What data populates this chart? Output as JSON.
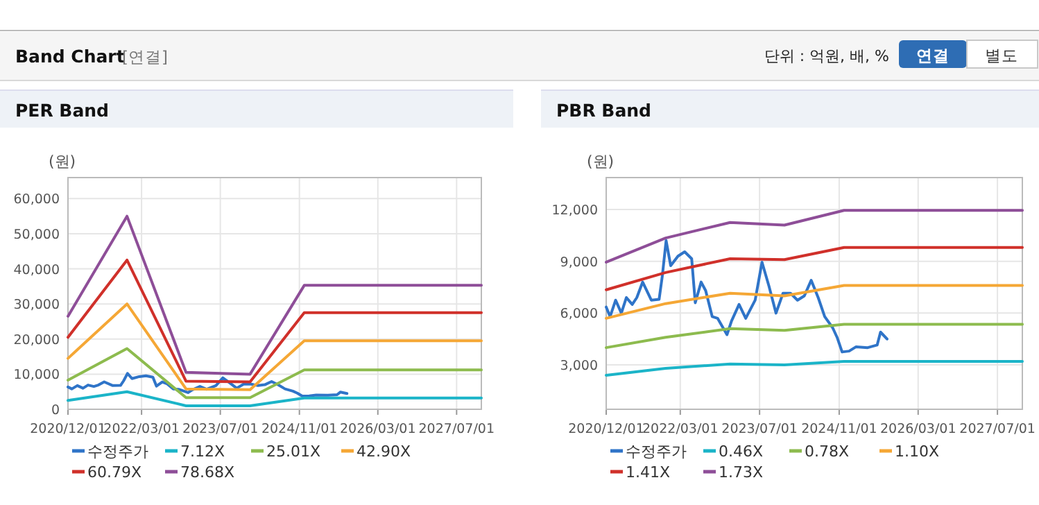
{
  "chart_data": [
    {
      "type": "other",
      "title": "Band Chart",
      "annotations": [
        "[연결]",
        "단위 : 억원, 배, %",
        "연결",
        "별도"
      ]
    },
    {
      "type": "line",
      "title": "PER Band",
      "ylabel": "(원)",
      "xlim": [
        "2020-12-01",
        "2027-12-01"
      ],
      "xticks": [
        {
          "value": "2020-12-01",
          "label": "2020/12/01"
        },
        {
          "value": "2022-03-01",
          "label": "2022/03/01"
        },
        {
          "value": "2023-07-01",
          "label": "2023/07/01"
        },
        {
          "value": "2024-11-01",
          "label": "2024/11/01"
        },
        {
          "value": "2026-03-01",
          "label": "2026/03/01"
        },
        {
          "value": "2027-07-01",
          "label": "2027/07/01"
        }
      ],
      "ylim": [
        0,
        66000
      ],
      "yticks": [
        {
          "value": 0,
          "label": "0"
        },
        {
          "value": 10000,
          "label": "10,000"
        },
        {
          "value": 20000,
          "label": "20,000"
        },
        {
          "value": 30000,
          "label": "30,000"
        },
        {
          "value": 40000,
          "label": "40,000"
        },
        {
          "value": 50000,
          "label": "50,000"
        },
        {
          "value": 60000,
          "label": "60,000"
        }
      ],
      "grid": true,
      "legend": "bottom",
      "marker": "none",
      "line_style": "solid",
      "series": [
        {
          "name": "수정주가",
          "color": "#2f74c8",
          "x": [
            "2020-12-01",
            "2020-12-25",
            "2021-01-28",
            "2021-03-04",
            "2021-04-04",
            "2021-05-10",
            "2021-06-07",
            "2021-07-13",
            "2021-09-04",
            "2021-10-22",
            "2021-11-10",
            "2021-12-04",
            "2022-01-01",
            "2022-02-15",
            "2022-03-28",
            "2022-05-10",
            "2022-06-01",
            "2022-07-07",
            "2022-08-04",
            "2022-09-13",
            "2022-10-16",
            "2022-12-13",
            "2023-01-10",
            "2023-02-25",
            "2023-04-07",
            "2023-06-04",
            "2023-07-16",
            "2023-08-28",
            "2023-10-10",
            "2023-11-22",
            "2024-01-07",
            "2024-02-19",
            "2024-04-01",
            "2024-05-13",
            "2024-06-25",
            "2024-08-04",
            "2024-09-22",
            "2024-10-19",
            "2024-11-19",
            "2025-01-01",
            "2025-02-13",
            "2025-04-25",
            "2025-06-22",
            "2025-07-13",
            "2025-08-22"
          ],
          "values": [
            6350,
            5800,
            6750,
            6000,
            6900,
            6500,
            6900,
            7800,
            6750,
            6800,
            8100,
            10200,
            8750,
            9300,
            9550,
            9150,
            6600,
            7800,
            7300,
            5800,
            5700,
            4750,
            5550,
            6500,
            5700,
            6750,
            8950,
            7550,
            6000,
            7150,
            7150,
            6750,
            7000,
            7900,
            6900,
            5800,
            5150,
            4600,
            3750,
            3800,
            4050,
            4000,
            4150,
            4900,
            4500
          ]
        },
        {
          "name": "7.12X",
          "color": "#1bb4c8",
          "x": [
            "2020-12-01",
            "2021-12-01",
            "2022-12-01",
            "2024-01-01",
            "2024-12-01",
            "2027-12-01"
          ],
          "values": [
            2500,
            5000,
            1000,
            1000,
            3200,
            3200
          ]
        },
        {
          "name": "25.01X",
          "color": "#8dbb4e",
          "x": [
            "2020-12-01",
            "2021-12-01",
            "2022-12-01",
            "2024-01-01",
            "2024-12-01",
            "2027-12-01"
          ],
          "values": [
            8300,
            17300,
            3300,
            3300,
            11200,
            11200
          ]
        },
        {
          "name": "42.90X",
          "color": "#f5a735",
          "x": [
            "2020-12-01",
            "2021-12-01",
            "2022-12-01",
            "2024-01-01",
            "2024-12-01",
            "2027-12-01"
          ],
          "values": [
            14500,
            30000,
            5800,
            5600,
            19500,
            19500
          ]
        },
        {
          "name": "60.79X",
          "color": "#d0302a",
          "x": [
            "2020-12-01",
            "2021-12-01",
            "2022-12-01",
            "2024-01-01",
            "2024-12-01",
            "2027-12-01"
          ],
          "values": [
            20500,
            42500,
            8000,
            7800,
            27500,
            27500
          ]
        },
        {
          "name": "78.68X",
          "color": "#8e4e98",
          "x": [
            "2020-12-01",
            "2021-12-01",
            "2022-12-01",
            "2024-01-01",
            "2024-12-01",
            "2027-12-01"
          ],
          "values": [
            26500,
            55000,
            10500,
            10000,
            35300,
            35300
          ]
        }
      ]
    },
    {
      "type": "line",
      "title": "PBR Band",
      "ylabel": "(원)",
      "xlim": [
        "2020-12-01",
        "2027-12-01"
      ],
      "xticks": [
        {
          "value": "2020-12-01",
          "label": "2020/12/01"
        },
        {
          "value": "2022-03-01",
          "label": "2022/03/01"
        },
        {
          "value": "2023-07-01",
          "label": "2023/07/01"
        },
        {
          "value": "2024-11-01",
          "label": "2024/11/01"
        },
        {
          "value": "2026-03-01",
          "label": "2026/03/01"
        },
        {
          "value": "2027-07-01",
          "label": "2027/07/01"
        }
      ],
      "ylim": [
        430,
        13850
      ],
      "yticks": [
        {
          "value": 3000,
          "label": "3,000"
        },
        {
          "value": 6000,
          "label": "6,000"
        },
        {
          "value": 9000,
          "label": "9,000"
        },
        {
          "value": 12000,
          "label": "12,000"
        }
      ],
      "grid": true,
      "legend": "bottom",
      "marker": "none",
      "line_style": "solid",
      "series": [
        {
          "name": "수정주가",
          "color": "#2f74c8",
          "x": [
            "2020-12-01",
            "2020-12-25",
            "2021-01-28",
            "2021-03-04",
            "2021-04-04",
            "2021-05-10",
            "2021-06-07",
            "2021-07-13",
            "2021-09-04",
            "2021-10-22",
            "2021-11-10",
            "2021-12-04",
            "2022-01-01",
            "2022-02-15",
            "2022-03-28",
            "2022-05-10",
            "2022-06-01",
            "2022-07-07",
            "2022-08-04",
            "2022-09-13",
            "2022-10-16",
            "2022-12-13",
            "2023-01-10",
            "2023-02-25",
            "2023-04-07",
            "2023-06-04",
            "2023-07-16",
            "2023-08-28",
            "2023-10-10",
            "2023-11-22",
            "2024-01-07",
            "2024-02-19",
            "2024-04-01",
            "2024-05-13",
            "2024-06-25",
            "2024-08-04",
            "2024-09-22",
            "2024-10-19",
            "2024-11-19",
            "2025-01-01",
            "2025-02-13",
            "2025-04-25",
            "2025-06-22",
            "2025-07-13",
            "2025-08-22"
          ],
          "values": [
            6350,
            5800,
            6750,
            6000,
            6900,
            6500,
            6900,
            7800,
            6750,
            6800,
            8100,
            10200,
            8750,
            9300,
            9550,
            9150,
            6600,
            7800,
            7300,
            5800,
            5700,
            4750,
            5550,
            6500,
            5700,
            6750,
            8950,
            7550,
            6000,
            7150,
            7150,
            6750,
            7000,
            7900,
            6900,
            5800,
            5150,
            4600,
            3750,
            3800,
            4050,
            4000,
            4150,
            4900,
            4500
          ]
        },
        {
          "name": "0.46X",
          "color": "#1bb4c8",
          "x": [
            "2020-12-01",
            "2021-12-01",
            "2023-01-01",
            "2023-12-01",
            "2024-12-01",
            "2027-12-01"
          ],
          "values": [
            2400,
            2800,
            3050,
            3000,
            3200,
            3200
          ]
        },
        {
          "name": "0.78X",
          "color": "#8dbb4e",
          "x": [
            "2020-12-01",
            "2021-12-01",
            "2023-01-01",
            "2023-12-01",
            "2024-12-01",
            "2027-12-01"
          ],
          "values": [
            4000,
            4600,
            5100,
            5000,
            5350,
            5350
          ]
        },
        {
          "name": "1.10X",
          "color": "#f5a735",
          "x": [
            "2020-12-01",
            "2021-12-01",
            "2023-01-01",
            "2023-12-01",
            "2024-12-01",
            "2027-12-01"
          ],
          "values": [
            5700,
            6550,
            7150,
            7000,
            7600,
            7600
          ]
        },
        {
          "name": "1.41X",
          "color": "#d0302a",
          "x": [
            "2020-12-01",
            "2021-12-01",
            "2023-01-01",
            "2023-12-01",
            "2024-12-01",
            "2027-12-01"
          ],
          "values": [
            7350,
            8350,
            9150,
            9100,
            9800,
            9800
          ]
        },
        {
          "name": "1.73X",
          "color": "#8e4e98",
          "x": [
            "2020-12-01",
            "2021-12-01",
            "2023-01-01",
            "2023-12-01",
            "2024-12-01",
            "2027-12-01"
          ],
          "values": [
            8950,
            10350,
            11250,
            11100,
            11950,
            11950
          ]
        }
      ]
    }
  ]
}
